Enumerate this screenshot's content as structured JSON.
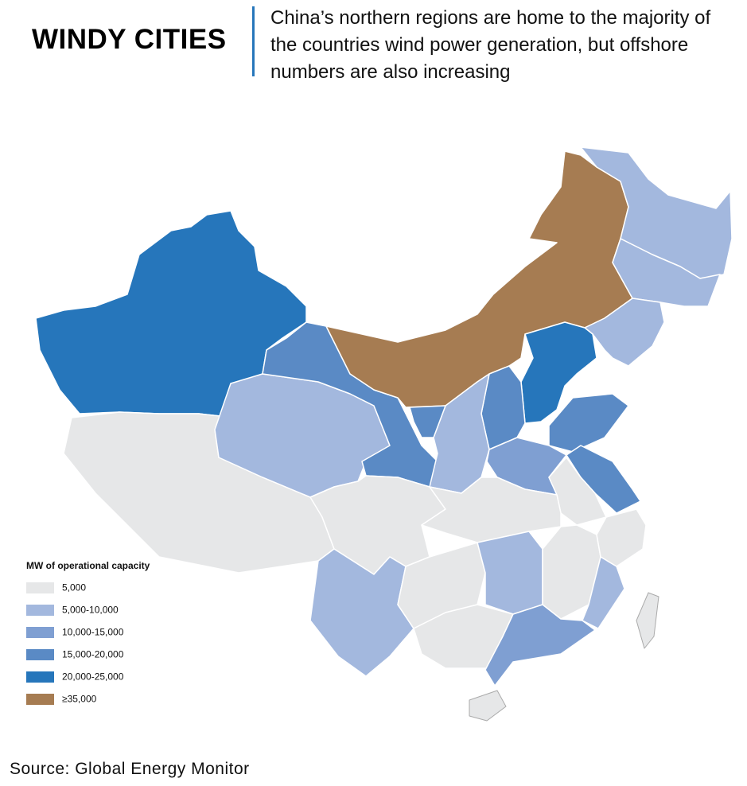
{
  "header": {
    "title": "WINDY CITIES",
    "subtitle": "China’s northern regions are home to the majority of the countries wind power generation, but offshore numbers are also increasing"
  },
  "legend": {
    "title": "MW of operational capacity",
    "items": [
      {
        "label": "5,000",
        "color": "#e6e7e8"
      },
      {
        "label": "5,000-10,000",
        "color": "#a3b8de"
      },
      {
        "label": "10,000-15,000",
        "color": "#7f9fd2"
      },
      {
        "label": "15,000-20,000",
        "color": "#5a8ac5"
      },
      {
        "label": "20,000-25,000",
        "color": "#2676bb"
      },
      {
        "label": "≥35,000",
        "color": "#a67c52"
      }
    ]
  },
  "source": "Source: Global Energy Monitor"
}
